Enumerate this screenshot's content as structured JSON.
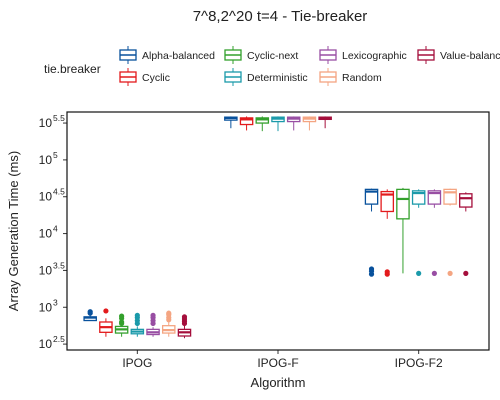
{
  "chart_data": {
    "type": "boxplot",
    "title": "7^8,2^20 t=4 - Tie-breaker",
    "xlabel": "Algorithm",
    "ylabel": "Array Generation Time (ms)",
    "y_scale": "log10",
    "ylim_log10": [
      2.42,
      5.65
    ],
    "y_ticks": [
      {
        "base": "10",
        "exp": "2.5",
        "log": 2.5
      },
      {
        "base": "10",
        "exp": "3",
        "log": 3
      },
      {
        "base": "10",
        "exp": "3.5",
        "log": 3.5
      },
      {
        "base": "10",
        "exp": "4",
        "log": 4
      },
      {
        "base": "10",
        "exp": "4.5",
        "log": 4.5
      },
      {
        "base": "10",
        "exp": "5",
        "log": 5
      },
      {
        "base": "10",
        "exp": "5.5",
        "log": 5.5
      }
    ],
    "categories": [
      "IPOG",
      "IPOG-F",
      "IPOG-F2"
    ],
    "grid": false,
    "legend": {
      "title": "tie.breaker",
      "position": "top",
      "entries": [
        "Alpha-balanced",
        "Cyclic",
        "Cyclic-next",
        "Deterministic",
        "Lexicographic",
        "Random",
        "Value-balanced"
      ]
    },
    "series": [
      {
        "name": "Alpha-balanced",
        "color": "#08519c",
        "boxes": [
          {
            "category": "IPOG",
            "lw": 2.85,
            "q1": 2.82,
            "med": 2.86,
            "q3": 2.87,
            "uw": 2.9,
            "outliers": [
              2.92,
              2.94
            ]
          },
          {
            "category": "IPOG-F",
            "lw": 5.43,
            "q1": 5.54,
            "med": 5.57,
            "q3": 5.58,
            "uw": 5.59,
            "outliers": []
          },
          {
            "category": "IPOG-F2",
            "lw": 4.3,
            "q1": 4.4,
            "med": 4.57,
            "q3": 4.6,
            "uw": 4.61,
            "outliers": [
              3.45,
              3.49,
              3.52
            ]
          }
        ]
      },
      {
        "name": "Cyclic",
        "color": "#e31a1c",
        "boxes": [
          {
            "category": "IPOG",
            "lw": 2.6,
            "q1": 2.66,
            "med": 2.73,
            "q3": 2.8,
            "uw": 2.85,
            "outliers": [
              2.95
            ]
          },
          {
            "category": "IPOG-F",
            "lw": 5.4,
            "q1": 5.48,
            "med": 5.55,
            "q3": 5.57,
            "uw": 5.59,
            "outliers": []
          },
          {
            "category": "IPOG-F2",
            "lw": 4.2,
            "q1": 4.3,
            "med": 4.53,
            "q3": 4.57,
            "uw": 4.6,
            "outliers": [
              3.45,
              3.48
            ]
          }
        ]
      },
      {
        "name": "Cyclic-next",
        "color": "#33a02c",
        "boxes": [
          {
            "category": "IPOG",
            "lw": 2.6,
            "q1": 2.65,
            "med": 2.7,
            "q3": 2.74,
            "uw": 2.76,
            "outliers": [
              2.78,
              2.8,
              2.85,
              2.88
            ]
          },
          {
            "category": "IPOG-F",
            "lw": 5.39,
            "q1": 5.5,
            "med": 5.55,
            "q3": 5.57,
            "uw": 5.59,
            "outliers": []
          },
          {
            "category": "IPOG-F2",
            "lw": 3.46,
            "q1": 4.2,
            "med": 4.47,
            "q3": 4.6,
            "uw": 4.62,
            "outliers": []
          }
        ]
      },
      {
        "name": "Deterministic",
        "color": "#1b9aaa",
        "boxes": [
          {
            "category": "IPOG",
            "lw": 2.6,
            "q1": 2.64,
            "med": 2.67,
            "q3": 2.7,
            "uw": 2.74,
            "outliers": [
              2.78,
              2.82,
              2.86,
              2.89
            ]
          },
          {
            "category": "IPOG-F",
            "lw": 5.39,
            "q1": 5.52,
            "med": 5.56,
            "q3": 5.58,
            "uw": 5.59,
            "outliers": []
          },
          {
            "category": "IPOG-F2",
            "lw": 4.35,
            "q1": 4.4,
            "med": 4.55,
            "q3": 4.58,
            "uw": 4.6,
            "outliers": [
              3.46
            ]
          }
        ]
      },
      {
        "name": "Lexicographic",
        "color": "#984ea3",
        "boxes": [
          {
            "category": "IPOG",
            "lw": 2.6,
            "q1": 2.63,
            "med": 2.66,
            "q3": 2.7,
            "uw": 2.73,
            "outliers": [
              2.78,
              2.82,
              2.86,
              2.89
            ]
          },
          {
            "category": "IPOG-F",
            "lw": 5.4,
            "q1": 5.52,
            "med": 5.56,
            "q3": 5.58,
            "uw": 5.59,
            "outliers": []
          },
          {
            "category": "IPOG-F2",
            "lw": 4.35,
            "q1": 4.4,
            "med": 4.55,
            "q3": 4.58,
            "uw": 4.6,
            "outliers": [
              3.46
            ]
          }
        ]
      },
      {
        "name": "Random",
        "color": "#f4a582",
        "boxes": [
          {
            "category": "IPOG",
            "lw": 2.6,
            "q1": 2.65,
            "med": 2.69,
            "q3": 2.75,
            "uw": 2.8,
            "outliers": [
              2.83,
              2.86,
              2.9,
              2.92
            ]
          },
          {
            "category": "IPOG-F",
            "lw": 5.4,
            "q1": 5.52,
            "med": 5.56,
            "q3": 5.58,
            "uw": 5.59,
            "outliers": []
          },
          {
            "category": "IPOG-F2",
            "lw": 4.38,
            "q1": 4.4,
            "med": 4.56,
            "q3": 4.6,
            "uw": 4.61,
            "outliers": [
              3.46
            ]
          }
        ]
      },
      {
        "name": "Value-balanced",
        "color": "#a50f3c",
        "boxes": [
          {
            "category": "IPOG",
            "lw": 2.58,
            "q1": 2.61,
            "med": 2.66,
            "q3": 2.7,
            "uw": 2.75,
            "outliers": [
              2.78,
              2.81,
              2.84,
              2.87
            ]
          },
          {
            "category": "IPOG-F",
            "lw": 5.43,
            "q1": 5.55,
            "med": 5.57,
            "q3": 5.58,
            "uw": 5.59,
            "outliers": []
          },
          {
            "category": "IPOG-F2",
            "lw": 4.3,
            "q1": 4.36,
            "med": 4.48,
            "q3": 4.54,
            "uw": 4.56,
            "outliers": [
              3.46
            ]
          }
        ]
      }
    ]
  }
}
